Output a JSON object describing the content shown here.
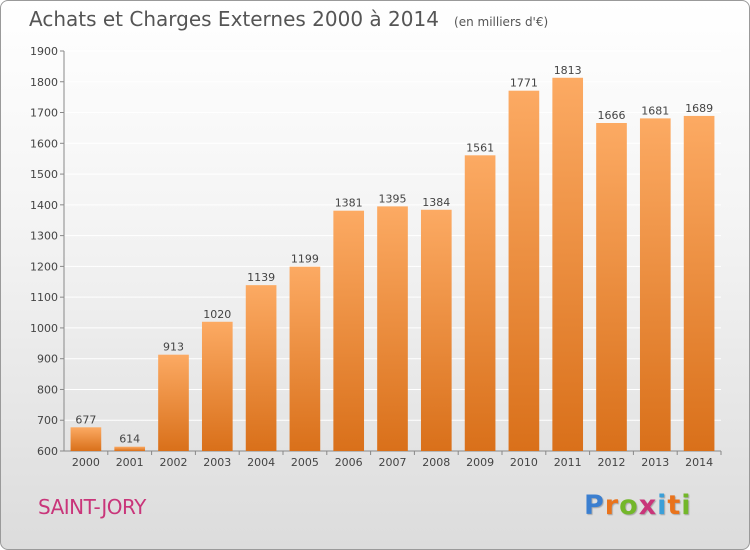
{
  "title": "Achats et Charges Externes 2000 à 2014",
  "unit_note": "(en milliers d'€)",
  "commune": "SAINT-JORY",
  "brand": {
    "text": "Proxiti",
    "letter_colors": [
      "#3b7fd0",
      "#e9731c",
      "#73b72a",
      "#c9357a",
      "#3b9fd8",
      "#e9731c",
      "#73b72a"
    ]
  },
  "colors": {
    "bar_light": "#fcaa63",
    "bar_dark": "#d9701a",
    "grid": "#ffffff",
    "axis_text": "#444444",
    "commune": "#c9357a"
  },
  "chart_data": {
    "type": "bar",
    "categories": [
      "2000",
      "2001",
      "2002",
      "2003",
      "2004",
      "2005",
      "2006",
      "2007",
      "2008",
      "2009",
      "2010",
      "2011",
      "2012",
      "2013",
      "2014"
    ],
    "values": [
      677,
      614,
      913,
      1020,
      1139,
      1199,
      1381,
      1395,
      1384,
      1561,
      1771,
      1813,
      1666,
      1681,
      1689
    ],
    "yticks": [
      600,
      700,
      800,
      900,
      1000,
      1100,
      1200,
      1300,
      1400,
      1500,
      1600,
      1700,
      1800,
      1900
    ],
    "ylim": [
      600,
      1900
    ],
    "grid": true,
    "data_labels": true
  }
}
